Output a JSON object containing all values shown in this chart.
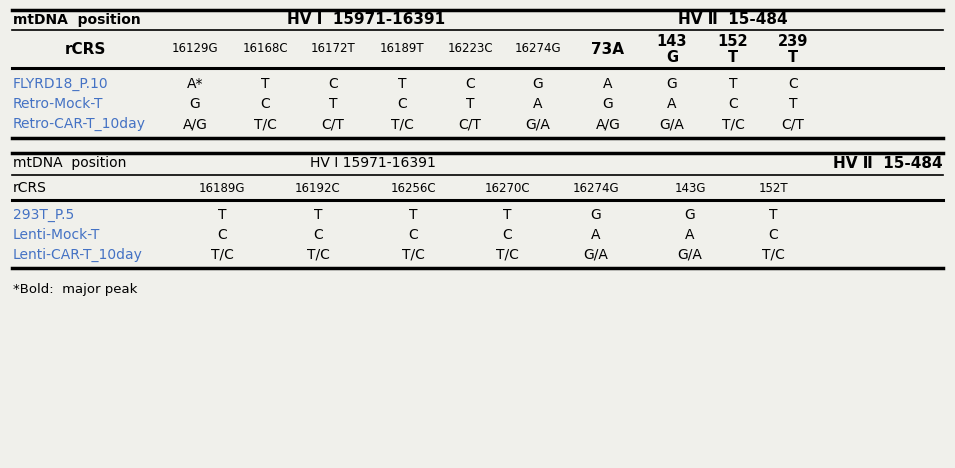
{
  "bg_color": "#f0f0eb",
  "table1": {
    "rows": [
      {
        "col0": {
          "text": "FLYRD18_P.10",
          "color": "#4472c4"
        },
        "col1": {
          "text": "A*"
        },
        "col2": {
          "text": "T"
        },
        "col3": {
          "text": "C"
        },
        "col4": {
          "text": "T"
        },
        "col5": {
          "text": "C"
        },
        "col6": {
          "text": "G"
        },
        "col7": {
          "text": "A"
        },
        "col8": {
          "text": "G"
        },
        "col9": {
          "text": "T"
        },
        "col10": {
          "text": "C"
        }
      },
      {
        "col0": {
          "text": "Retro-Mock-T",
          "color": "#4472c4"
        },
        "col1": {
          "text": "G"
        },
        "col2": {
          "text": "C"
        },
        "col3": {
          "text": "T"
        },
        "col4": {
          "text": "C"
        },
        "col5": {
          "text": "T"
        },
        "col6": {
          "text": "A"
        },
        "col7": {
          "text": "G"
        },
        "col8": {
          "text": "A"
        },
        "col9": {
          "text": "C"
        },
        "col10": {
          "text": "T"
        }
      },
      {
        "col0": {
          "text": "Retro-CAR-T_10day",
          "color": "#4472c4"
        },
        "col1": {
          "text": "A/G"
        },
        "col2": {
          "text": "T/C"
        },
        "col3": {
          "text": "C/T"
        },
        "col4": {
          "text": "T/C"
        },
        "col5": {
          "text": "C/T"
        },
        "col6": {
          "text": "G/A"
        },
        "col7": {
          "text": "A/G"
        },
        "col8": {
          "text": "G/A"
        },
        "col9": {
          "text": "T/C"
        },
        "col10": {
          "text": "C/T"
        }
      }
    ]
  },
  "table2": {
    "rows": [
      {
        "col0": {
          "text": "293T_P.5",
          "color": "#4472c4"
        },
        "col1": {
          "text": "T"
        },
        "col2": {
          "text": "T"
        },
        "col3": {
          "text": "T"
        },
        "col4": {
          "text": "T"
        },
        "col5": {
          "text": "G"
        },
        "col6": {
          "text": "G"
        },
        "col7": {
          "text": "T"
        }
      },
      {
        "col0": {
          "text": "Lenti-Mock-T",
          "color": "#4472c4"
        },
        "col1": {
          "text": "C"
        },
        "col2": {
          "text": "C"
        },
        "col3": {
          "text": "C"
        },
        "col4": {
          "text": "C"
        },
        "col5": {
          "text": "A"
        },
        "col6": {
          "text": "A"
        },
        "col7": {
          "text": "C"
        }
      },
      {
        "col0": {
          "text": "Lenti-CAR-T_10day",
          "color": "#4472c4"
        },
        "col1": {
          "text": "T/C"
        },
        "col2": {
          "text": "T/C"
        },
        "col3": {
          "text": "T/C"
        },
        "col4": {
          "text": "T/C"
        },
        "col5": {
          "text": "G/A"
        },
        "col6": {
          "text": "G/A"
        },
        "col7": {
          "text": "T/C"
        }
      }
    ]
  },
  "footnote": "*Bold:  major peak"
}
